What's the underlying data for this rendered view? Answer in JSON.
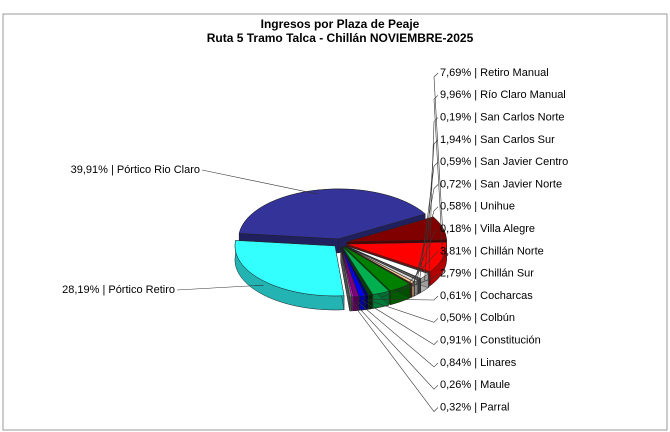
{
  "chart_data": {
    "type": "pie",
    "title": "Ingresos por Plaza de Peaje",
    "subtitle": "Ruta 5 Tramo Talca - Chillán NOVIEMBRE-2025",
    "values": [
      7.69,
      9.96,
      0.19,
      1.94,
      0.59,
      0.72,
      0.58,
      0.18,
      3.81,
      2.79,
      0.61,
      0.5,
      0.91,
      0.84,
      0.26,
      0.32,
      28.19,
      39.91
    ],
    "value_labels": [
      "7,69% | Retiro Manual",
      "9,96% | Río Claro Manual",
      "0,19% | San Carlos Norte",
      "1,94% | San Carlos Sur",
      "0,59% | San Javier Centro",
      "0,72% | San Javier Norte",
      "0,58% | Unihue",
      "0,18% | Villa Alegre",
      "3,81% | Chillán Norte",
      "2,79% | Chillán Sur",
      "0,61% | Cocharcas",
      "0,50% | Colbún",
      "0,91% | Constitución",
      "0,84% | Linares",
      "0,26% | Maule",
      "0,32% | Parral",
      "28,19% | Pórtico Retiro",
      "39,91% | Pórtico Rio Claro"
    ],
    "colors": [
      "#800000",
      "#ff0000",
      "#b0b0b0",
      "#ffffff",
      "#606060",
      "#d8d8d8",
      "#ffcc99",
      "#993300",
      "#008000",
      "#00b050",
      "#004000",
      "#000080",
      "#0000ff",
      "#800080",
      "#ff00ff",
      "#808080",
      "#33ffff",
      "#333399"
    ]
  }
}
